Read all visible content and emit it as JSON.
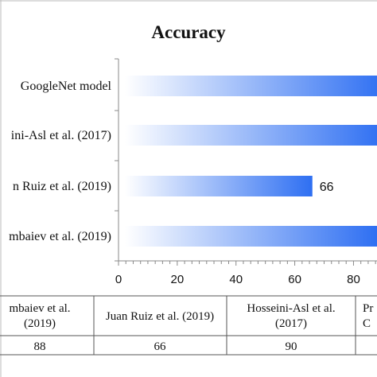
{
  "chart_data": {
    "type": "bar",
    "orientation": "horizontal",
    "title": "Accuracy",
    "categories": [
      "GoogleNet model",
      "ini-Asl et al. (2017)",
      "n Ruiz et al. (2019)",
      "mbaiev et al. (2019)"
    ],
    "values": [
      null,
      90,
      66,
      88
    ],
    "data_labels": [
      "",
      "",
      "66",
      ""
    ],
    "x_ticks": [
      0,
      20,
      40,
      60,
      80
    ],
    "xlim": [
      0,
      88
    ],
    "grid": false,
    "bar_gradient": [
      "#ffffff",
      "#2e6ff2"
    ],
    "table": {
      "headers": [
        "mbaiev et al.\n(2019)",
        "Juan Ruiz et al. (2019)",
        "Hosseini-Asl et al.\n(2017)",
        "Pr\nC"
      ],
      "values": [
        "88",
        "66",
        "90",
        ""
      ]
    }
  }
}
